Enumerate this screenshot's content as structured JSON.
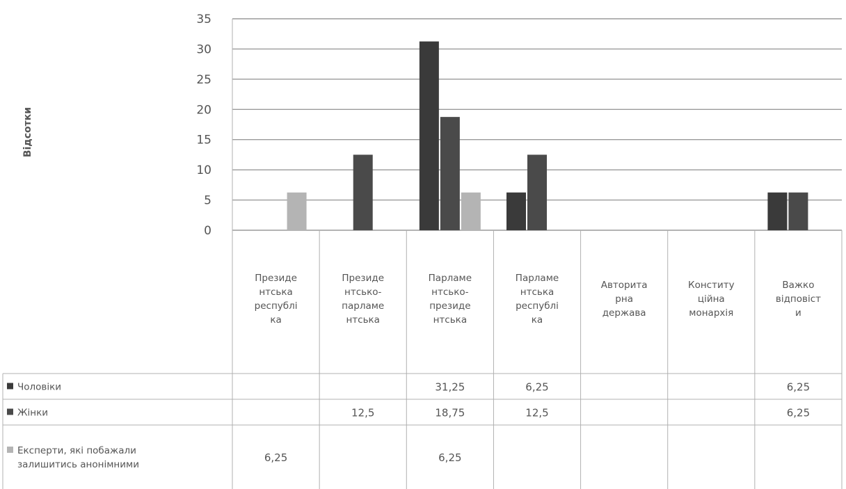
{
  "chart_data": {
    "type": "bar",
    "ylabel": "Відсотки",
    "ylim": [
      0,
      35
    ],
    "yticks": [
      "35",
      "30",
      "25",
      "20",
      "15",
      "10",
      "5",
      "0"
    ],
    "grid": true,
    "legend": "data table rows below chart",
    "categories": [
      [
        "Президе",
        "нтська",
        "республі",
        "ка"
      ],
      [
        "Президе",
        "нтсько-",
        "парламе",
        "нтська"
      ],
      [
        "Парламе",
        "нтсько-",
        "президе",
        "нтська"
      ],
      [
        "Парламе",
        "нтська",
        "республі",
        "ка"
      ],
      [
        "Авторита",
        "рна",
        "держава"
      ],
      [
        "Конститу",
        "ційна",
        "монархія"
      ],
      [
        "Важко",
        "відповіст",
        "и"
      ]
    ],
    "series": [
      {
        "name": "Чоловіки",
        "name_lines": [
          "Чоловіки"
        ],
        "color": "#3a3a3a",
        "values": [
          null,
          null,
          31.25,
          6.25,
          null,
          null,
          6.25
        ],
        "labels": [
          "",
          "",
          "31,25",
          "6,25",
          "",
          "",
          "6,25"
        ]
      },
      {
        "name": "Жінки",
        "name_lines": [
          "Жінки"
        ],
        "color": "#4a4a4a",
        "values": [
          null,
          12.5,
          18.75,
          12.5,
          null,
          null,
          6.25
        ],
        "labels": [
          "",
          "12,5",
          "18,75",
          "12,5",
          "",
          "",
          "6,25"
        ]
      },
      {
        "name": "Експерти, які побажали залишитись анонімними",
        "name_lines": [
          "Експерти, які побажали",
          "залишитись анонімними"
        ],
        "color": "#b4b4b4",
        "values": [
          6.25,
          null,
          6.25,
          null,
          null,
          null,
          null
        ],
        "labels": [
          "6,25",
          "",
          "6,25",
          "",
          "",
          "",
          ""
        ]
      }
    ]
  }
}
